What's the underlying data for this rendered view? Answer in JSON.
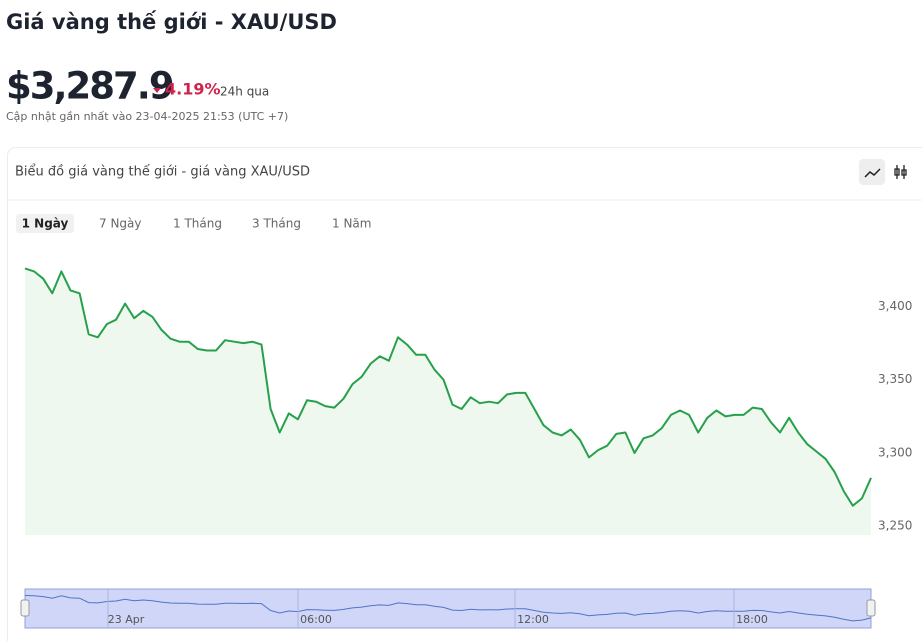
{
  "title": "Giá vàng thế giới - XAU/USD",
  "price": "$3,287.9",
  "change": "4.19%",
  "change_period": "24h qua",
  "updated": "Cập nhật gần nhất vào 23-04-2025 21:53 (UTC +7)",
  "chart_data": {
    "type": "line",
    "title": "Biểu đồ giá vàng thế giới - giá vàng XAU/USD",
    "ranges": [
      "1 Ngày",
      "7 Ngày",
      "1 Tháng",
      "3 Tháng",
      "1 Năm"
    ],
    "color": "#26a04a",
    "values": [
      3426,
      3424,
      3419,
      3409,
      3424,
      3411,
      3409,
      3381,
      3379,
      3388,
      3391,
      3402,
      3392,
      3397,
      3393,
      3384,
      3378,
      3376,
      3376,
      3371,
      3370,
      3370,
      3377,
      3376,
      3375,
      3376,
      3374,
      3330,
      3314,
      3327,
      3323,
      3336,
      3335,
      3332,
      3331,
      3337,
      3347,
      3352,
      3361,
      3366,
      3363,
      3379,
      3374,
      3367,
      3367,
      3357,
      3350,
      3333,
      3330,
      3338,
      3334,
      3335,
      3334,
      3340,
      3341,
      3341,
      3330,
      3319,
      3314,
      3312,
      3316,
      3309,
      3297,
      3302,
      3305,
      3313,
      3314,
      3300,
      3310,
      3312,
      3317,
      3326,
      3329,
      3326,
      3314,
      3324,
      3329,
      3325,
      3326,
      3326,
      3331,
      3330,
      3321,
      3314,
      3324,
      3314,
      3306,
      3301,
      3296,
      3287,
      3274,
      3264,
      3269,
      3283
    ],
    "ylim": [
      3244,
      3442
    ],
    "yticks": [
      {
        "value": 3250,
        "label": "3,250"
      },
      {
        "value": 3300,
        "label": "3,300"
      },
      {
        "value": 3350,
        "label": "3,350"
      },
      {
        "value": 3400,
        "label": "3,400"
      }
    ],
    "navigator_labels": [
      "23 Apr",
      "06:00",
      "12:00",
      "18:00"
    ]
  }
}
